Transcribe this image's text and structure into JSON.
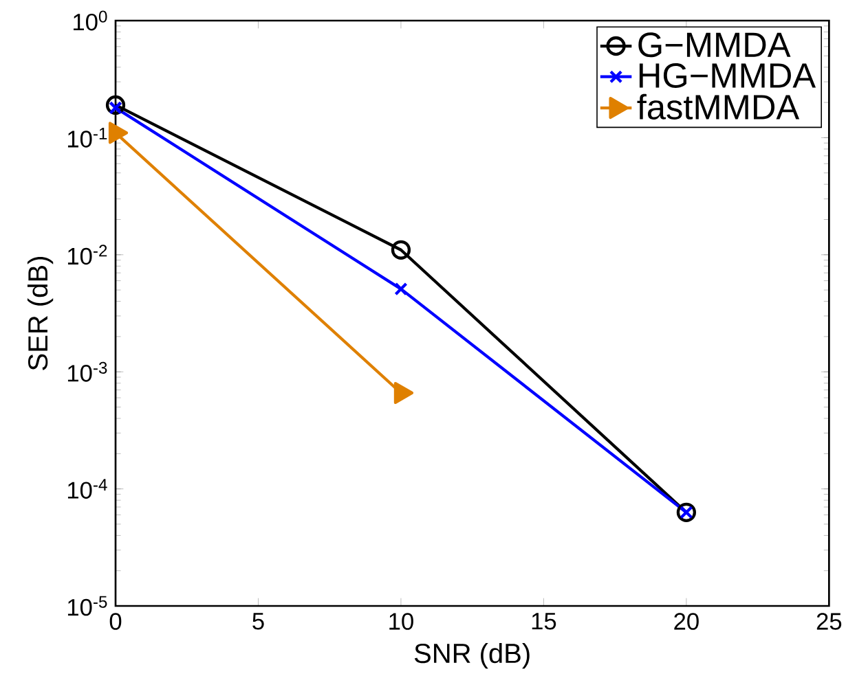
{
  "chart_data": {
    "type": "line",
    "xlabel": "SNR (dB)",
    "ylabel": "SER (dB)",
    "log": "y",
    "xlim": [
      0,
      25
    ],
    "xticks": [
      0,
      5,
      10,
      15,
      20,
      25
    ],
    "ylim": [
      1e-05,
      1
    ],
    "yticks": [
      {
        "value": 1e-05,
        "label": "10$^{-5}$"
      },
      {
        "value": 0.0001,
        "label": "10$^{-4}$"
      },
      {
        "value": 0.001,
        "label": "10$^{-3}$"
      },
      {
        "value": 0.01,
        "label": "10$^{-2}$"
      },
      {
        "value": 0.1,
        "label": "10$^{-1}$"
      },
      {
        "value": 1,
        "label": "10$^{0}$"
      }
    ],
    "grid": false,
    "legend": "top right",
    "line_style": "solid",
    "series": [
      {
        "name": "G−MMDA",
        "color": "#000000",
        "marker": "circle",
        "x": [
          0,
          10,
          20
        ],
        "values": [
          0.19,
          0.011,
          6.3e-05
        ]
      },
      {
        "name": "HG−MMDA",
        "color": "#0000ff",
        "marker": "cross",
        "x": [
          0,
          10,
          20
        ],
        "values": [
          0.18,
          0.0051,
          6.3e-05
        ]
      },
      {
        "name": "fastMMDA",
        "color": "#df8000",
        "marker": "triangle",
        "x": [
          0,
          10
        ],
        "values": [
          0.11,
          0.00066
        ]
      }
    ]
  }
}
